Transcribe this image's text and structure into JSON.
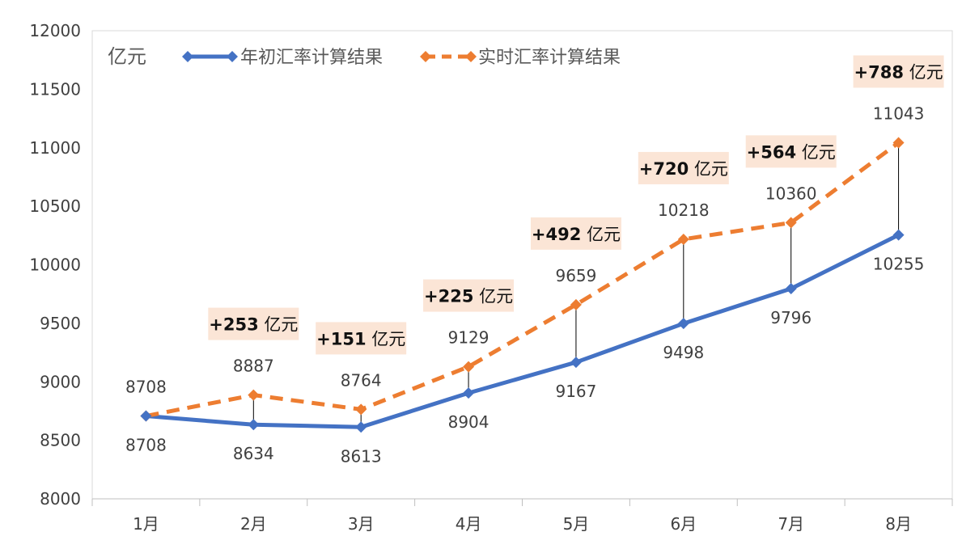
{
  "chart_data": {
    "type": "line",
    "unit_label": "亿元",
    "categories": [
      "1月",
      "2月",
      "3月",
      "4月",
      "5月",
      "6月",
      "7月",
      "8月"
    ],
    "y_ticks": [
      "8000",
      "8500",
      "9000",
      "9500",
      "10000",
      "10500",
      "11000",
      "11500",
      "12000"
    ],
    "ylim": [
      8000,
      12000
    ],
    "y_step": 500,
    "grid": false,
    "legend_position": "top-left",
    "series": [
      {
        "name": "年初汇率计算结果",
        "color": "#4472C4",
        "style": "solid",
        "marker": "diamond",
        "values": [
          8708,
          8634,
          8613,
          8904,
          9167,
          9498,
          9796,
          10255
        ],
        "labels": [
          "8708",
          "8634",
          "8613",
          "8904",
          "9167",
          "9498",
          "9796",
          "10255"
        ]
      },
      {
        "name": "实时汇率计算结果",
        "color": "#ED7D31",
        "style": "dashed",
        "marker": "diamond",
        "values": [
          8708,
          8887,
          8764,
          9129,
          9659,
          10218,
          10360,
          11043
        ],
        "labels": [
          "8708",
          "8887",
          "8764",
          "9129",
          "9659",
          "10218",
          "10360",
          "11043"
        ]
      }
    ],
    "differences": [
      {
        "index": 1,
        "amount": "+253",
        "unit": " 亿元"
      },
      {
        "index": 2,
        "amount": "+151",
        "unit": " 亿元"
      },
      {
        "index": 3,
        "amount": "+225",
        "unit": " 亿元"
      },
      {
        "index": 4,
        "amount": "+492",
        "unit": " 亿元"
      },
      {
        "index": 5,
        "amount": "+720",
        "unit": " 亿元"
      },
      {
        "index": 6,
        "amount": "+564",
        "unit": " 亿元"
      },
      {
        "index": 7,
        "amount": "+788",
        "unit": " 亿元"
      }
    ],
    "difference_box_color": "#FBE5D6"
  }
}
